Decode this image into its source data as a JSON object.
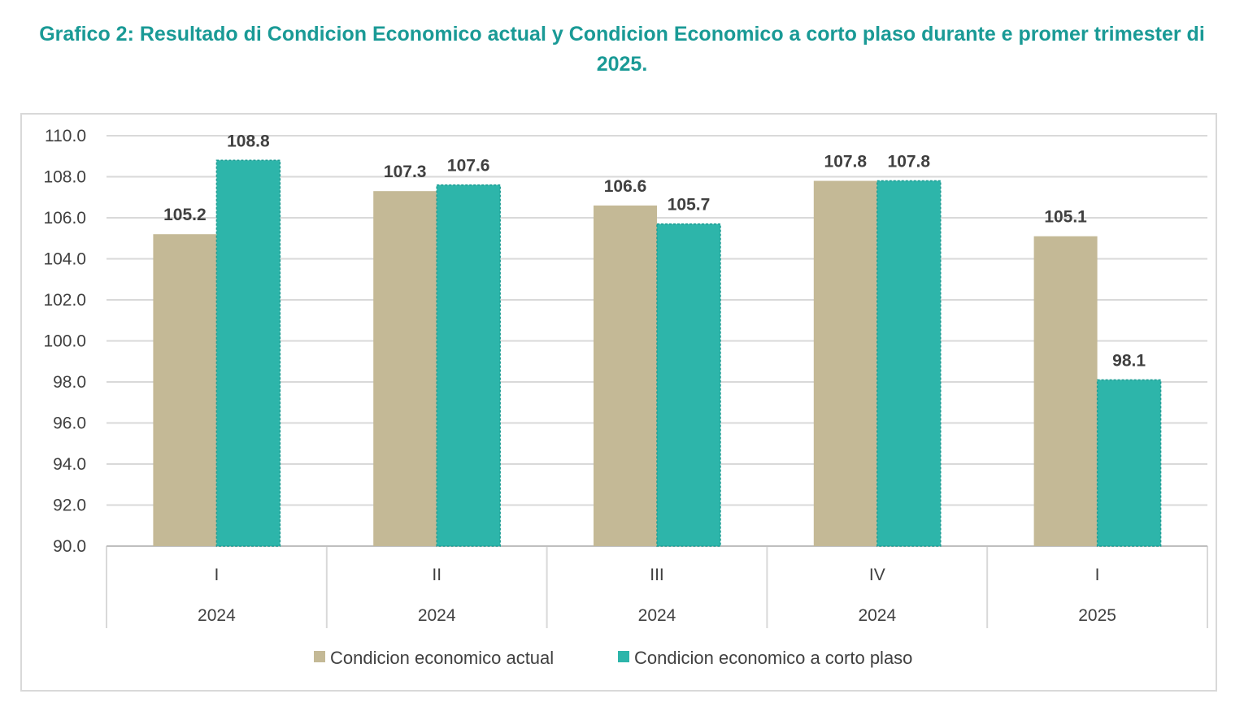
{
  "title_line1": "Grafico 2: Resultado di Condicion Economico actual y Condicion Economico a corto plaso durante e promer trimester di",
  "title_line2": "2025.",
  "chart_data": {
    "type": "bar",
    "categories": [
      {
        "quarter": "I",
        "year": "2024"
      },
      {
        "quarter": "II",
        "year": "2024"
      },
      {
        "quarter": "III",
        "year": "2024"
      },
      {
        "quarter": "IV",
        "year": "2024"
      },
      {
        "quarter": "I",
        "year": "2025"
      }
    ],
    "series": [
      {
        "name": "Condicion economico actual",
        "color": "#c4b996",
        "values": [
          105.2,
          107.3,
          106.6,
          107.8,
          105.1
        ]
      },
      {
        "name": "Condicion economico a corto plaso",
        "color": "#2db5aa",
        "values": [
          108.8,
          107.6,
          105.7,
          107.8,
          98.1
        ]
      }
    ],
    "yticks": [
      "110.0",
      "108.0",
      "106.0",
      "104.0",
      "102.0",
      "100.0",
      "98.0",
      "96.0",
      "94.0",
      "92.0",
      "90.0"
    ],
    "ylim": [
      90,
      110
    ],
    "grid": true,
    "legend_position": "bottom",
    "data_labels": true
  }
}
